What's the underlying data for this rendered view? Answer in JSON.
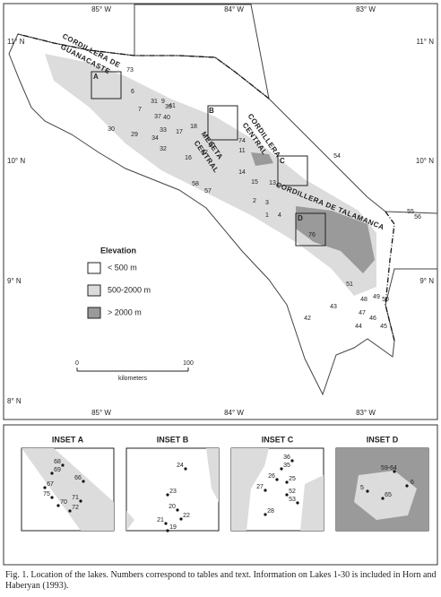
{
  "map": {
    "longitude_labels": [
      "85° W",
      "84° W",
      "83° W"
    ],
    "latitude_labels": [
      "11° N",
      "10° N",
      "9° N",
      "8° N"
    ],
    "region_labels": [
      "CORDILLERA DE",
      "GUANACASTE",
      "CORDILLERA",
      "CENTRAL",
      "MESETA",
      "CENTRAL",
      "CORDILLERA DE TALAMANCA"
    ],
    "inset_markers": [
      "A",
      "B",
      "C",
      "D"
    ],
    "lakes": [
      "73",
      "6",
      "31",
      "9",
      "39",
      "7",
      "37",
      "40",
      "33",
      "17",
      "29",
      "34",
      "32",
      "30",
      "41",
      "18",
      "10",
      "74",
      "11",
      "16",
      "12",
      "14",
      "15",
      "13",
      "2",
      "3",
      "1",
      "4",
      "76",
      "54",
      "58",
      "57",
      "55",
      "56",
      "51",
      "48",
      "49",
      "50",
      "47",
      "46",
      "45",
      "44",
      "43",
      "42"
    ]
  },
  "legend": {
    "title": "Elevation",
    "items": [
      "< 500 m",
      "500-2000 m",
      "> 2000 m"
    ]
  },
  "scale_bar": {
    "labels": [
      "0",
      "100"
    ],
    "unit": "kilometers"
  },
  "insets": [
    {
      "title": "INSET A",
      "lakes": [
        "68",
        "69",
        "66",
        "67",
        "75",
        "70",
        "71",
        "72"
      ]
    },
    {
      "title": "INSET B",
      "lakes": [
        "24",
        "23",
        "20",
        "22",
        "21",
        "19"
      ]
    },
    {
      "title": "INSET C",
      "lakes": [
        "36",
        "35",
        "26",
        "25",
        "27",
        "52",
        "53",
        "28"
      ]
    },
    {
      "title": "INSET D",
      "lakes": [
        "59-64",
        "6",
        "5",
        "65"
      ]
    }
  ],
  "caption": "Fig. 1. Location of the lakes. Numbers correspond to tables and text. Information on Lakes 1-30 is included in Horn and Haberyan (1993)."
}
